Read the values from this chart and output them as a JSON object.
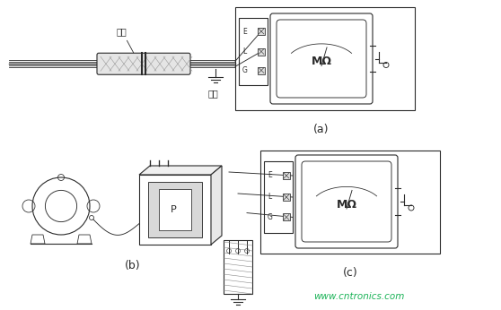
{
  "bg_color": "#f0f0f0",
  "line_color": "#2a2a2a",
  "label_a": "(a)",
  "label_b": "(b)",
  "label_c": "(c)",
  "text_ganguan": "鉢管",
  "text_daoxian": "导线",
  "text_E": "E",
  "text_L": "L",
  "text_G": "G",
  "text_MOmega": "MΩ",
  "text_P": "P",
  "watermark": "www.cntronics.com",
  "watermark_color": "#00aa44"
}
